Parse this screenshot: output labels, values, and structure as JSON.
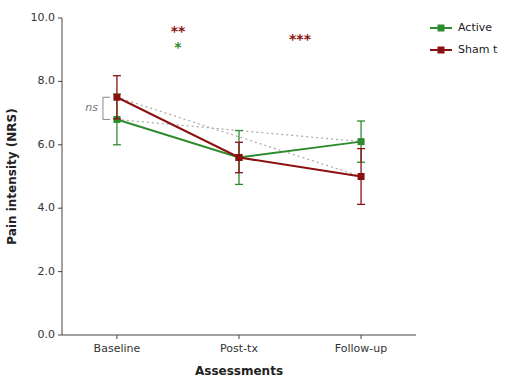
{
  "chart_data": {
    "type": "line",
    "categories": [
      "Baseline",
      "Post-tx",
      "Follow-up"
    ],
    "xlabel": "Assessments",
    "ylabel": "Pain intensity (NRS)",
    "ylim": [
      0.0,
      10.0
    ],
    "yticks": [
      {
        "value": 0.0,
        "label": "0.0"
      },
      {
        "value": 2.0,
        "label": "2.0"
      },
      {
        "value": 4.0,
        "label": "4.0"
      },
      {
        "value": 6.0,
        "label": "6.0"
      },
      {
        "value": 8.0,
        "label": "8.0"
      },
      {
        "value": 10.0,
        "label": "10.0"
      }
    ],
    "series": [
      {
        "name": "Active",
        "color": "#2e8b2e",
        "marker": "square",
        "values": [
          6.8,
          5.6,
          6.1
        ],
        "errors": [
          0.8,
          0.85,
          0.65
        ]
      },
      {
        "name": "Sham t",
        "color": "#8b1010",
        "marker": "square",
        "values": [
          7.5,
          5.6,
          5.0
        ],
        "errors": [
          0.68,
          0.48,
          0.88
        ]
      }
    ],
    "annotations": [
      {
        "text": "ns"
      },
      {
        "text": "**",
        "color": "#8b1010"
      },
      {
        "text": "*",
        "color": "#2e8b2e"
      },
      {
        "text": "***",
        "color": "#8b1010"
      }
    ],
    "legend": "right",
    "grid": false
  }
}
